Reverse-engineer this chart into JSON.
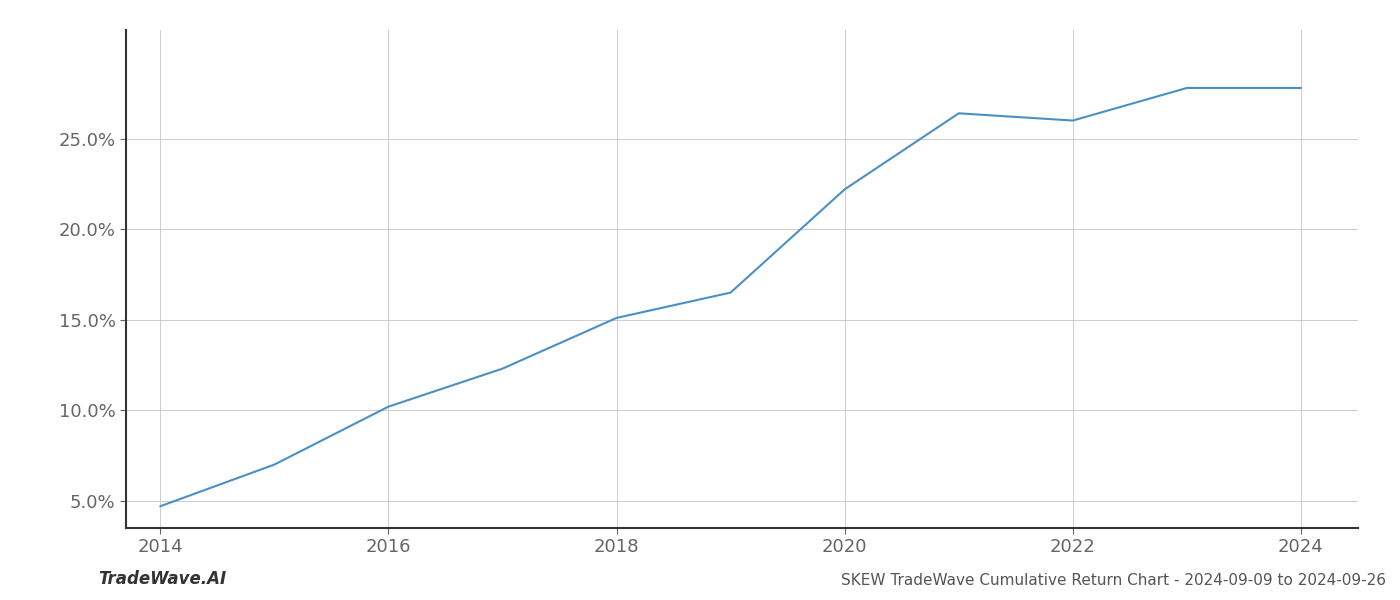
{
  "x_values": [
    2014,
    2015,
    2016,
    2017,
    2018,
    2019,
    2020,
    2021,
    2022,
    2023,
    2024
  ],
  "y_values": [
    4.7,
    7.0,
    10.2,
    12.3,
    15.1,
    16.5,
    22.2,
    26.4,
    26.0,
    27.8,
    27.8
  ],
  "line_color": "#4a90c4",
  "line_width": 1.5,
  "background_color": "#ffffff",
  "grid_color": "#cccccc",
  "title": "SKEW TradeWave Cumulative Return Chart - 2024-09-09 to 2024-09-26",
  "watermark": "TradeWave.AI",
  "xlim": [
    2013.7,
    2024.5
  ],
  "ylim": [
    3.5,
    31.0
  ],
  "yticks": [
    5.0,
    10.0,
    15.0,
    20.0,
    25.0
  ],
  "xticks": [
    2014,
    2016,
    2018,
    2020,
    2022,
    2024
  ],
  "tick_fontsize": 13,
  "title_fontsize": 11,
  "watermark_fontsize": 12
}
